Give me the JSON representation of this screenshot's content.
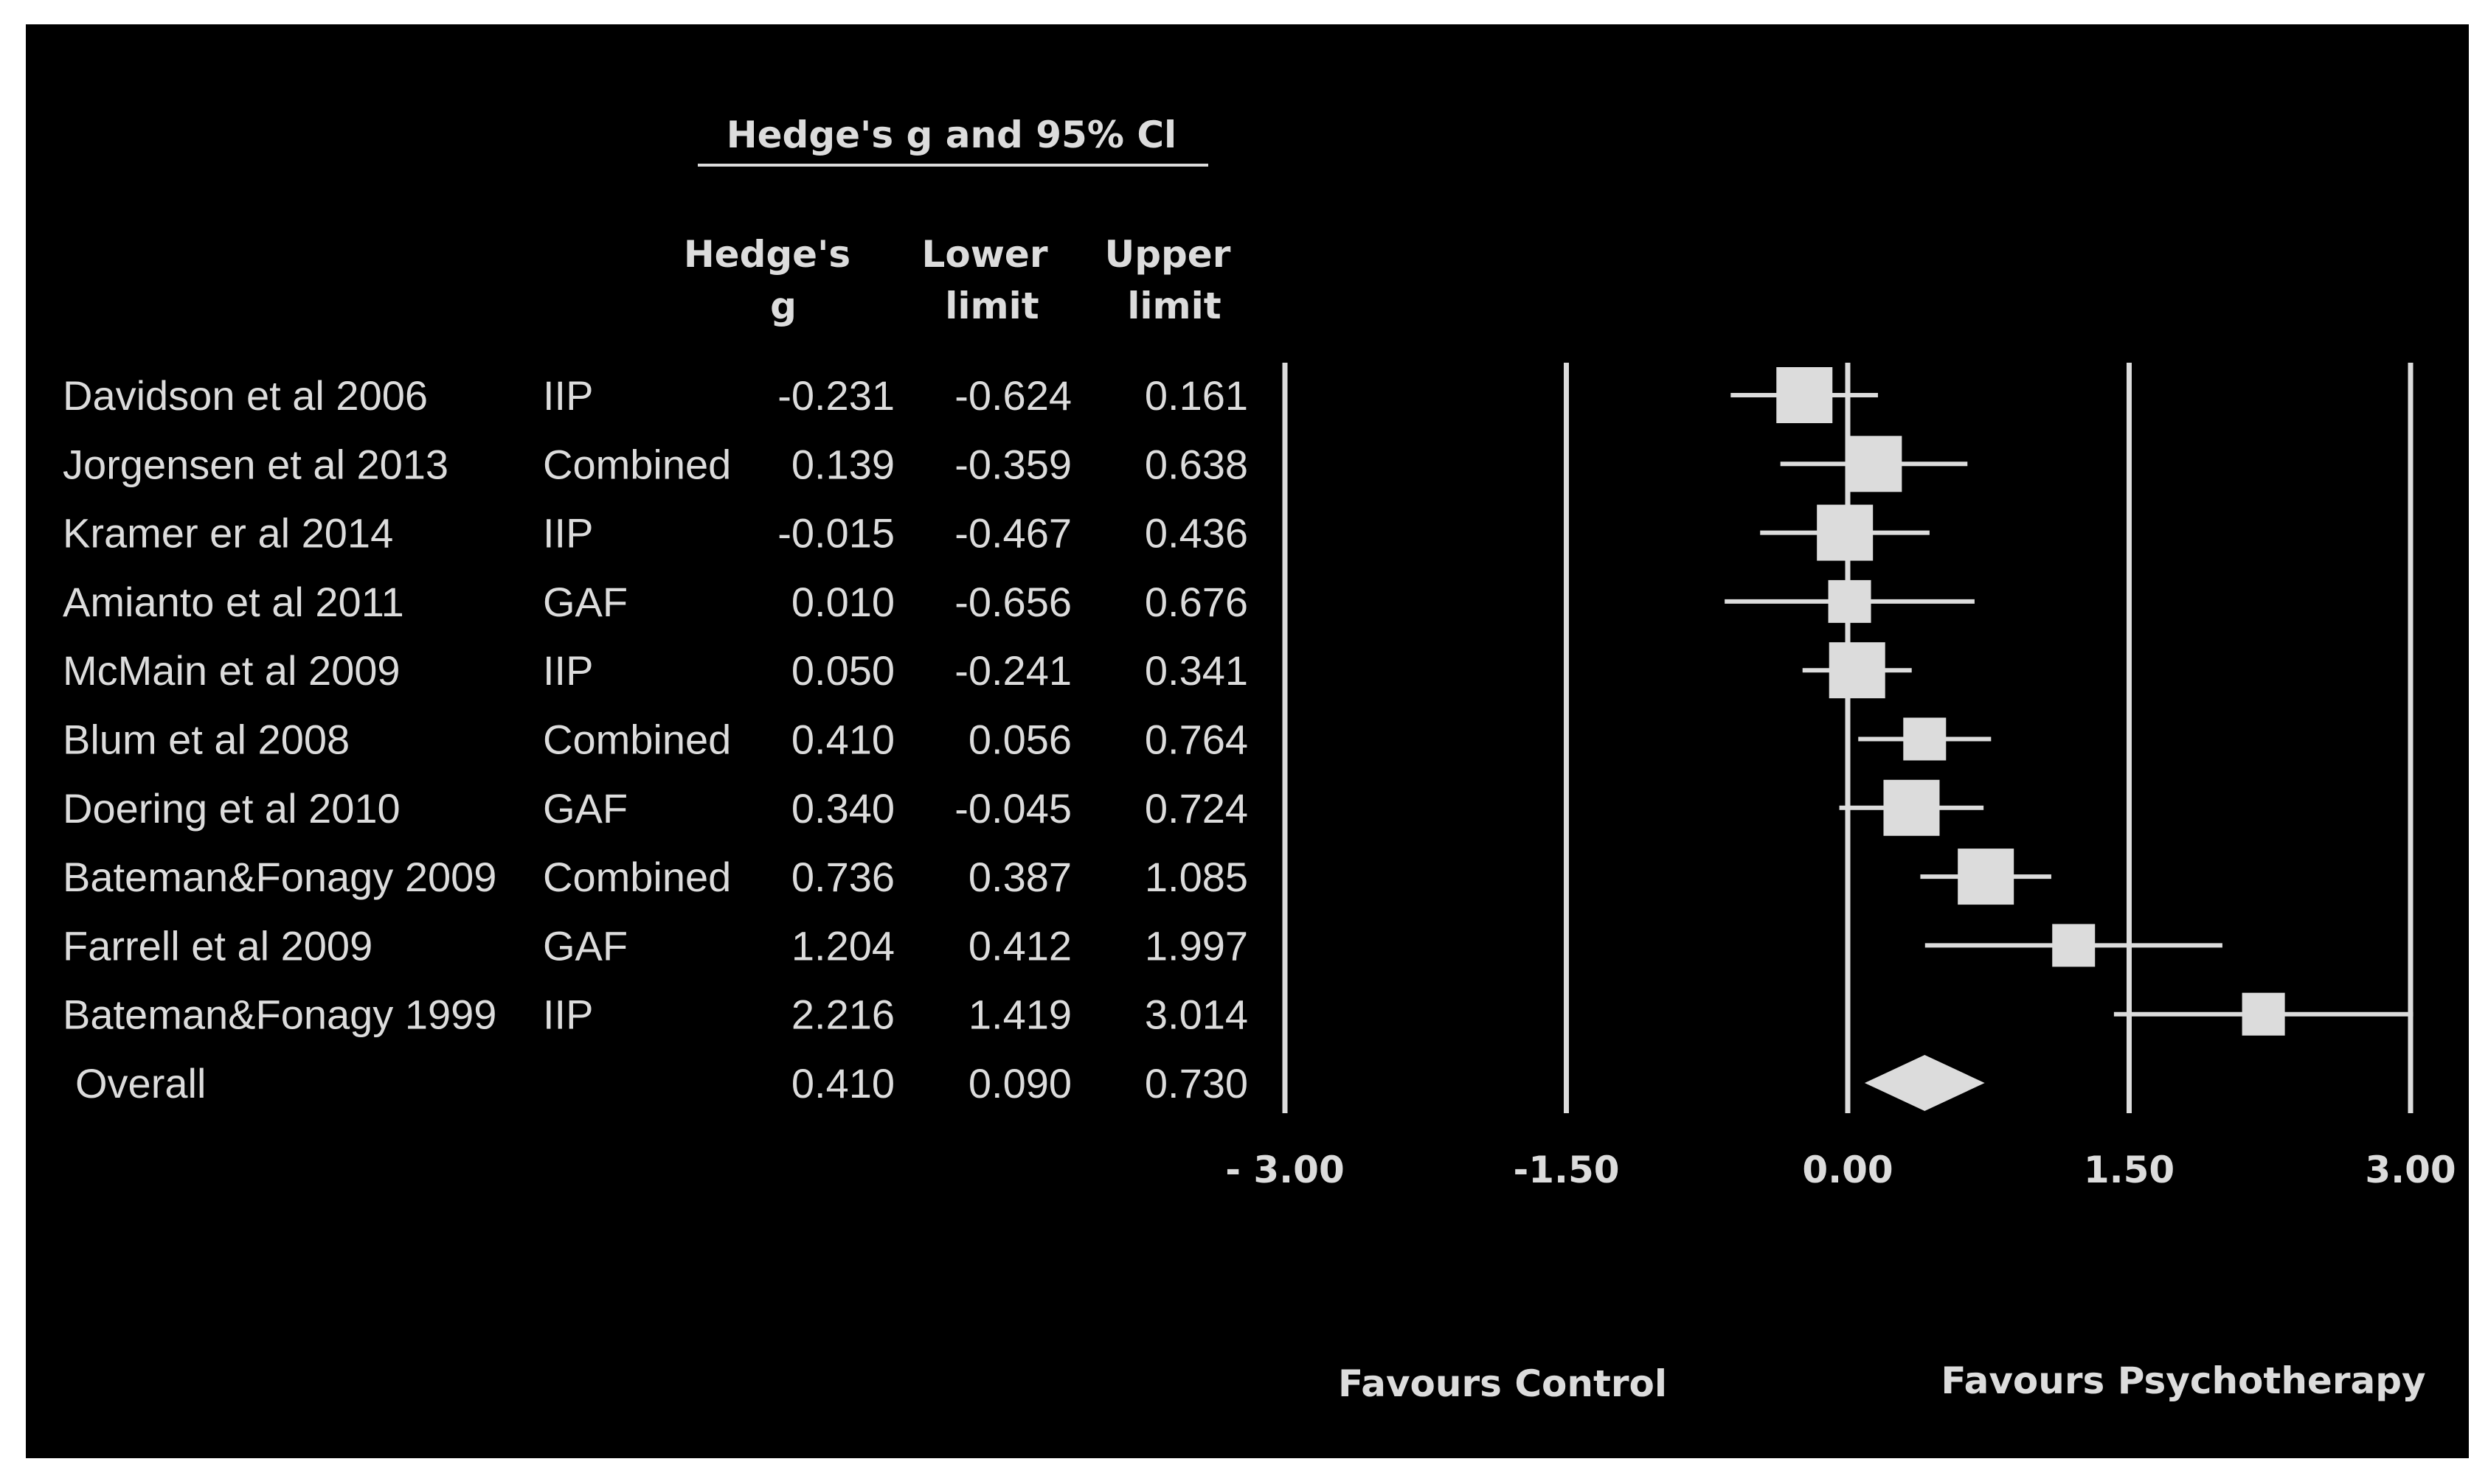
{
  "chart_data": {
    "type": "forest",
    "title": "Hedge's g   and 95% Cl",
    "columns": {
      "g": [
        "Hedge's",
        "g"
      ],
      "lower": [
        "Lower",
        "limit"
      ],
      "upper": [
        "Upper",
        "limit"
      ]
    },
    "studies": [
      {
        "name": "Davidson et al 2006",
        "outcome": "IIP",
        "g": "-0.231",
        "lower": "-0.624",
        "upper": "0.161"
      },
      {
        "name": "Jorgensen et al 2013",
        "outcome": "Combined",
        "g": "0.139",
        "lower": "-0.359",
        "upper": "0.638"
      },
      {
        "name": "Kramer er al 2014",
        "outcome": "IIP",
        "g": "-0.015",
        "lower": "-0.467",
        "upper": "0.436"
      },
      {
        "name": "Amianto et al 2011",
        "outcome": "GAF",
        "g": "0.010",
        "lower": "-0.656",
        "upper": "0.676"
      },
      {
        "name": "McMain et al 2009",
        "outcome": "IIP",
        "g": "0.050",
        "lower": "-0.241",
        "upper": "0.341"
      },
      {
        "name": "Blum et al 2008",
        "outcome": "Combined",
        "g": "0.410",
        "lower": "0.056",
        "upper": "0.764"
      },
      {
        "name": "Doering et al 2010",
        "outcome": "GAF",
        "g": "0.340",
        "lower": "-0.045",
        "upper": "0.724"
      },
      {
        "name": "Bateman&Fonagy 2009",
        "outcome": "Combined",
        "g": "0.736",
        "lower": "0.387",
        "upper": "1.085"
      },
      {
        "name": "Farrell et al 2009",
        "outcome": "GAF",
        "g": "1.204",
        "lower": "0.412",
        "upper": "1.997"
      },
      {
        "name": "Bateman&Fonagy 1999",
        "outcome": "IIP",
        "g": "2.216",
        "lower": "1.419",
        "upper": "3.014"
      }
    ],
    "overall": {
      "name": "Overall",
      "g": "0.410",
      "lower": "0.090",
      "upper": "0.730"
    },
    "xlim": [
      -3.0,
      3.0
    ],
    "ticks": [
      {
        "value": -3.0,
        "label": "- 3.00"
      },
      {
        "value": -1.5,
        "label": "-1.50"
      },
      {
        "value": 0.0,
        "label": "0.00"
      },
      {
        "value": 1.5,
        "label": "1.50"
      },
      {
        "value": 3.0,
        "label": "3.00"
      }
    ],
    "favours_left": "Favours Control",
    "favours_right": "Favours Psychotherapy",
    "marker_size": [
      3,
      3,
      3,
      2,
      3,
      2,
      3,
      3,
      2,
      2
    ],
    "colors": {
      "background": "#000000",
      "foreground": "#dcdcdc"
    }
  }
}
